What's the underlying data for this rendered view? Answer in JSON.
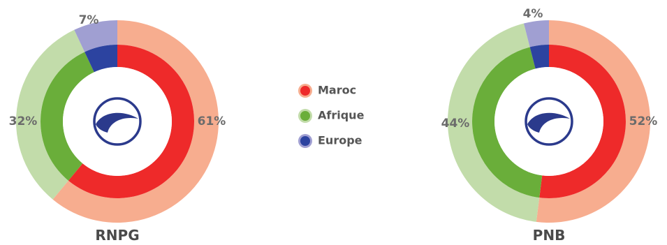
{
  "chart_data": [
    {
      "type": "pie",
      "title": "RNPG",
      "labels": [
        "Maroc",
        "Afrique",
        "Europe"
      ],
      "values": [
        61,
        32,
        7
      ],
      "value_labels": [
        "61%",
        "32%",
        "7%"
      ],
      "style": "double ring donut (outer pale, inner saturated)"
    },
    {
      "type": "pie",
      "title": "PNB",
      "labels": [
        "Maroc",
        "Afrique",
        "Europe"
      ],
      "values": [
        52,
        44,
        4
      ],
      "value_labels": [
        "52%",
        "44%",
        "4%"
      ],
      "style": "double ring donut (outer pale, inner saturated)"
    }
  ],
  "legend": {
    "placement": "center",
    "items": [
      {
        "label": "Maroc",
        "color": "#ee2a2a",
        "light": "#f7ad8f"
      },
      {
        "label": "Afrique",
        "color": "#6aae3a",
        "light": "#c2dcaa"
      },
      {
        "label": "Europe",
        "color": "#2c43a0",
        "light": "#a09fd2"
      }
    ]
  },
  "center_icon": "bank-logo-icon"
}
